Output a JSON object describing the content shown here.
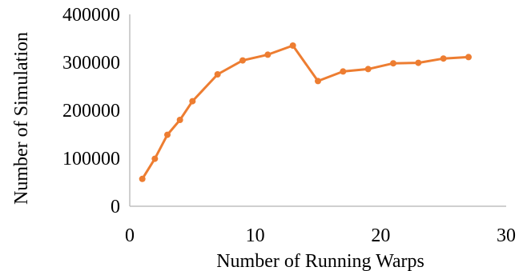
{
  "chart_data": {
    "type": "line",
    "title": "",
    "xlabel": "Number of Running Warps",
    "ylabel": "Number of Simulation",
    "xlim": [
      0,
      30
    ],
    "ylim": [
      0,
      400000
    ],
    "x_ticks": [
      "0",
      "10",
      "20",
      "30"
    ],
    "y_ticks": [
      "0",
      "100000",
      "200000",
      "300000",
      "400000"
    ],
    "grid": false,
    "legend": "none",
    "series": [
      {
        "color": "#ED7D31",
        "x": [
          1,
          2,
          3,
          4,
          5,
          7,
          9,
          11,
          13,
          15,
          17,
          19,
          21,
          23,
          25,
          27
        ],
        "y": [
          57000,
          99000,
          149000,
          180000,
          219000,
          275000,
          304000,
          316000,
          335000,
          261000,
          281000,
          286000,
          298000,
          299000,
          308000,
          311000
        ]
      }
    ]
  }
}
